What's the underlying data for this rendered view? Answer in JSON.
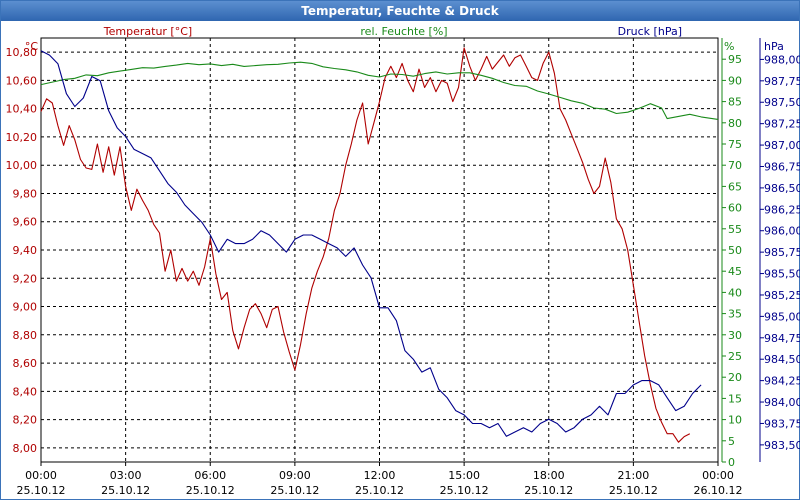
{
  "window": {
    "title": "Temperatur, Feuchte & Druck"
  },
  "chart_data": {
    "type": "line",
    "title": "Temperatur, Feuchte & Druck",
    "colors": {
      "temperature": "#b00000",
      "humidity": "#1a8a1a",
      "pressure": "#00008b",
      "grid": "#000000"
    },
    "x_ticks": [
      {
        "hour": 0,
        "time": "00:00",
        "date": "25.10.12"
      },
      {
        "hour": 3,
        "time": "03:00",
        "date": "25.10.12"
      },
      {
        "hour": 6,
        "time": "06:00",
        "date": "25.10.12"
      },
      {
        "hour": 9,
        "time": "09:00",
        "date": "25.10.12"
      },
      {
        "hour": 12,
        "time": "12:00",
        "date": "25.10.12"
      },
      {
        "hour": 15,
        "time": "15:00",
        "date": "25.10.12"
      },
      {
        "hour": 18,
        "time": "18:00",
        "date": "25.10.12"
      },
      {
        "hour": 21,
        "time": "21:00",
        "date": "25.10.12"
      },
      {
        "hour": 24,
        "time": "00:00",
        "date": "26.10.12"
      }
    ],
    "xlim": [
      0,
      24
    ],
    "axes": {
      "temperature": {
        "label": "Temperatur [°C]",
        "unit": "°C",
        "ylim": [
          7.9,
          10.9
        ],
        "ticks": [
          "8,00",
          "8,20",
          "8,40",
          "8,60",
          "8,80",
          "9,00",
          "9,20",
          "9,40",
          "9,60",
          "9,80",
          "10,00",
          "10,20",
          "10,40",
          "10,60",
          "10,80"
        ]
      },
      "humidity": {
        "label": "rel. Feuchte [%]",
        "unit": "%",
        "ylim": [
          0,
          100
        ],
        "ticks": [
          "0",
          "5",
          "10",
          "15",
          "20",
          "25",
          "30",
          "35",
          "40",
          "45",
          "50",
          "55",
          "60",
          "65",
          "70",
          "75",
          "80",
          "85",
          "90",
          "95"
        ]
      },
      "pressure": {
        "label": "Druck [hPa]",
        "unit": "hPa",
        "ylim": [
          983.3,
          988.25
        ],
        "ticks": [
          "983,50",
          "983,75",
          "984,00",
          "984,25",
          "984,50",
          "984,75",
          "985,00",
          "985,25",
          "985,50",
          "985,75",
          "986,00",
          "986,25",
          "986,50",
          "986,75",
          "987,00",
          "987,25",
          "987,50",
          "987,75",
          "988,00"
        ]
      }
    },
    "series": [
      {
        "name": "Temperatur",
        "axis": "temperature",
        "points": [
          [
            0,
            10.38
          ],
          [
            0.2,
            10.47
          ],
          [
            0.4,
            10.44
          ],
          [
            0.6,
            10.28
          ],
          [
            0.8,
            10.14
          ],
          [
            1.0,
            10.28
          ],
          [
            1.2,
            10.18
          ],
          [
            1.4,
            10.04
          ],
          [
            1.6,
            9.98
          ],
          [
            1.8,
            9.97
          ],
          [
            2.0,
            10.15
          ],
          [
            2.2,
            9.95
          ],
          [
            2.4,
            10.13
          ],
          [
            2.6,
            9.93
          ],
          [
            2.8,
            10.13
          ],
          [
            3.0,
            9.85
          ],
          [
            3.2,
            9.68
          ],
          [
            3.4,
            9.83
          ],
          [
            3.6,
            9.75
          ],
          [
            3.8,
            9.68
          ],
          [
            4.0,
            9.58
          ],
          [
            4.2,
            9.52
          ],
          [
            4.4,
            9.25
          ],
          [
            4.6,
            9.4
          ],
          [
            4.8,
            9.18
          ],
          [
            5.0,
            9.27
          ],
          [
            5.2,
            9.18
          ],
          [
            5.4,
            9.25
          ],
          [
            5.6,
            9.15
          ],
          [
            5.8,
            9.28
          ],
          [
            6.0,
            9.48
          ],
          [
            6.2,
            9.23
          ],
          [
            6.4,
            9.05
          ],
          [
            6.6,
            9.1
          ],
          [
            6.8,
            8.83
          ],
          [
            7.0,
            8.7
          ],
          [
            7.2,
            8.85
          ],
          [
            7.4,
            8.98
          ],
          [
            7.6,
            9.02
          ],
          [
            7.8,
            8.95
          ],
          [
            8.0,
            8.85
          ],
          [
            8.2,
            8.98
          ],
          [
            8.4,
            9.0
          ],
          [
            8.6,
            8.82
          ],
          [
            8.8,
            8.68
          ],
          [
            9.0,
            8.55
          ],
          [
            9.2,
            8.73
          ],
          [
            9.4,
            8.95
          ],
          [
            9.6,
            9.13
          ],
          [
            9.8,
            9.25
          ],
          [
            10.0,
            9.35
          ],
          [
            10.2,
            9.48
          ],
          [
            10.4,
            9.68
          ],
          [
            10.6,
            9.8
          ],
          [
            10.8,
            10.0
          ],
          [
            11.0,
            10.15
          ],
          [
            11.2,
            10.32
          ],
          [
            11.4,
            10.44
          ],
          [
            11.6,
            10.15
          ],
          [
            11.8,
            10.3
          ],
          [
            12.0,
            10.45
          ],
          [
            12.2,
            10.62
          ],
          [
            12.4,
            10.7
          ],
          [
            12.6,
            10.62
          ],
          [
            12.8,
            10.72
          ],
          [
            13.0,
            10.6
          ],
          [
            13.2,
            10.52
          ],
          [
            13.4,
            10.68
          ],
          [
            13.6,
            10.55
          ],
          [
            13.8,
            10.62
          ],
          [
            14.0,
            10.52
          ],
          [
            14.2,
            10.6
          ],
          [
            14.4,
            10.58
          ],
          [
            14.6,
            10.45
          ],
          [
            14.8,
            10.55
          ],
          [
            15.0,
            10.83
          ],
          [
            15.2,
            10.7
          ],
          [
            15.4,
            10.6
          ],
          [
            15.6,
            10.68
          ],
          [
            15.8,
            10.77
          ],
          [
            16.0,
            10.68
          ],
          [
            16.2,
            10.73
          ],
          [
            16.4,
            10.78
          ],
          [
            16.6,
            10.7
          ],
          [
            16.8,
            10.76
          ],
          [
            17.0,
            10.78
          ],
          [
            17.2,
            10.7
          ],
          [
            17.4,
            10.62
          ],
          [
            17.6,
            10.6
          ],
          [
            17.8,
            10.72
          ],
          [
            18.0,
            10.8
          ],
          [
            18.2,
            10.65
          ],
          [
            18.4,
            10.4
          ],
          [
            18.6,
            10.32
          ],
          [
            18.8,
            10.22
          ],
          [
            19.0,
            10.12
          ],
          [
            19.2,
            10.02
          ],
          [
            19.4,
            9.9
          ],
          [
            19.6,
            9.8
          ],
          [
            19.8,
            9.85
          ],
          [
            20.0,
            10.05
          ],
          [
            20.2,
            9.88
          ],
          [
            20.4,
            9.62
          ],
          [
            20.6,
            9.55
          ],
          [
            20.8,
            9.4
          ],
          [
            21.0,
            9.15
          ],
          [
            21.2,
            8.9
          ],
          [
            21.4,
            8.65
          ],
          [
            21.6,
            8.45
          ],
          [
            21.8,
            8.28
          ],
          [
            22.0,
            8.18
          ],
          [
            22.2,
            8.1
          ],
          [
            22.4,
            8.1
          ],
          [
            22.6,
            8.04
          ],
          [
            22.8,
            8.08
          ],
          [
            23.0,
            8.1
          ]
        ]
      },
      {
        "name": "rel. Feuchte",
        "axis": "humidity",
        "points": [
          [
            0,
            89.0
          ],
          [
            0.4,
            89.6
          ],
          [
            0.8,
            90.2
          ],
          [
            1.2,
            90.5
          ],
          [
            1.6,
            91.3
          ],
          [
            2.0,
            91.1
          ],
          [
            2.4,
            91.8
          ],
          [
            2.8,
            92.2
          ],
          [
            3.2,
            92.6
          ],
          [
            3.6,
            93.0
          ],
          [
            4.0,
            92.9
          ],
          [
            4.4,
            93.3
          ],
          [
            4.8,
            93.6
          ],
          [
            5.2,
            94.0
          ],
          [
            5.6,
            93.7
          ],
          [
            6.0,
            93.9
          ],
          [
            6.4,
            93.5
          ],
          [
            6.8,
            93.8
          ],
          [
            7.2,
            93.3
          ],
          [
            7.6,
            93.5
          ],
          [
            8.0,
            93.7
          ],
          [
            8.4,
            93.8
          ],
          [
            8.8,
            94.1
          ],
          [
            9.2,
            94.3
          ],
          [
            9.6,
            94.0
          ],
          [
            10.0,
            93.2
          ],
          [
            10.4,
            92.8
          ],
          [
            10.8,
            92.5
          ],
          [
            11.2,
            92.0
          ],
          [
            11.6,
            91.2
          ],
          [
            12.0,
            90.8
          ],
          [
            12.4,
            91.5
          ],
          [
            12.8,
            91.4
          ],
          [
            13.2,
            91.0
          ],
          [
            13.6,
            91.6
          ],
          [
            14.0,
            92.0
          ],
          [
            14.4,
            91.5
          ],
          [
            14.8,
            91.8
          ],
          [
            15.2,
            91.8
          ],
          [
            15.6,
            91.2
          ],
          [
            16.0,
            90.5
          ],
          [
            16.4,
            89.5
          ],
          [
            16.8,
            88.8
          ],
          [
            17.2,
            88.6
          ],
          [
            17.6,
            87.5
          ],
          [
            18.0,
            86.8
          ],
          [
            18.4,
            86.0
          ],
          [
            18.8,
            85.2
          ],
          [
            19.2,
            84.6
          ],
          [
            19.6,
            83.5
          ],
          [
            20.0,
            83.2
          ],
          [
            20.4,
            82.2
          ],
          [
            20.8,
            82.5
          ],
          [
            21.2,
            83.4
          ],
          [
            21.6,
            84.5
          ],
          [
            22.0,
            83.5
          ],
          [
            22.2,
            81.0
          ],
          [
            22.6,
            81.5
          ],
          [
            23.0,
            82.0
          ],
          [
            23.4,
            81.4
          ],
          [
            24.0,
            80.8
          ]
        ]
      },
      {
        "name": "Druck",
        "axis": "pressure",
        "points": [
          [
            0,
            988.1
          ],
          [
            0.3,
            988.05
          ],
          [
            0.6,
            987.95
          ],
          [
            0.9,
            987.6
          ],
          [
            1.2,
            987.45
          ],
          [
            1.5,
            987.55
          ],
          [
            1.8,
            987.8
          ],
          [
            2.1,
            987.75
          ],
          [
            2.4,
            987.4
          ],
          [
            2.7,
            987.2
          ],
          [
            3.0,
            987.1
          ],
          [
            3.3,
            986.95
          ],
          [
            3.6,
            986.9
          ],
          [
            3.9,
            986.85
          ],
          [
            4.2,
            986.7
          ],
          [
            4.5,
            986.55
          ],
          [
            4.8,
            986.45
          ],
          [
            5.1,
            986.3
          ],
          [
            5.4,
            986.2
          ],
          [
            5.7,
            986.1
          ],
          [
            6.0,
            985.95
          ],
          [
            6.3,
            985.75
          ],
          [
            6.6,
            985.9
          ],
          [
            6.9,
            985.85
          ],
          [
            7.2,
            985.85
          ],
          [
            7.5,
            985.9
          ],
          [
            7.8,
            986.0
          ],
          [
            8.1,
            985.95
          ],
          [
            8.4,
            985.85
          ],
          [
            8.7,
            985.75
          ],
          [
            9.0,
            985.9
          ],
          [
            9.3,
            985.95
          ],
          [
            9.6,
            985.95
          ],
          [
            9.9,
            985.9
          ],
          [
            10.2,
            985.85
          ],
          [
            10.5,
            985.8
          ],
          [
            10.8,
            985.7
          ],
          [
            11.1,
            985.8
          ],
          [
            11.4,
            985.6
          ],
          [
            11.7,
            985.45
          ],
          [
            12.0,
            985.1
          ],
          [
            12.3,
            985.1
          ],
          [
            12.6,
            984.95
          ],
          [
            12.9,
            984.6
          ],
          [
            13.2,
            984.5
          ],
          [
            13.5,
            984.35
          ],
          [
            13.8,
            984.4
          ],
          [
            14.1,
            984.15
          ],
          [
            14.4,
            984.05
          ],
          [
            14.7,
            983.9
          ],
          [
            15.0,
            983.85
          ],
          [
            15.3,
            983.75
          ],
          [
            15.6,
            983.75
          ],
          [
            15.9,
            983.7
          ],
          [
            16.2,
            983.75
          ],
          [
            16.5,
            983.6
          ],
          [
            16.8,
            983.65
          ],
          [
            17.1,
            983.7
          ],
          [
            17.4,
            983.65
          ],
          [
            17.7,
            983.75
          ],
          [
            18.0,
            983.8
          ],
          [
            18.3,
            983.75
          ],
          [
            18.6,
            983.65
          ],
          [
            18.9,
            983.7
          ],
          [
            19.2,
            983.8
          ],
          [
            19.5,
            983.85
          ],
          [
            19.8,
            983.95
          ],
          [
            20.1,
            983.85
          ],
          [
            20.4,
            984.1
          ],
          [
            20.7,
            984.1
          ],
          [
            21.0,
            984.2
          ],
          [
            21.3,
            984.25
          ],
          [
            21.6,
            984.25
          ],
          [
            21.9,
            984.2
          ],
          [
            22.2,
            984.05
          ],
          [
            22.5,
            983.9
          ],
          [
            22.8,
            983.95
          ],
          [
            23.1,
            984.1
          ],
          [
            23.4,
            984.2
          ]
        ]
      }
    ]
  }
}
